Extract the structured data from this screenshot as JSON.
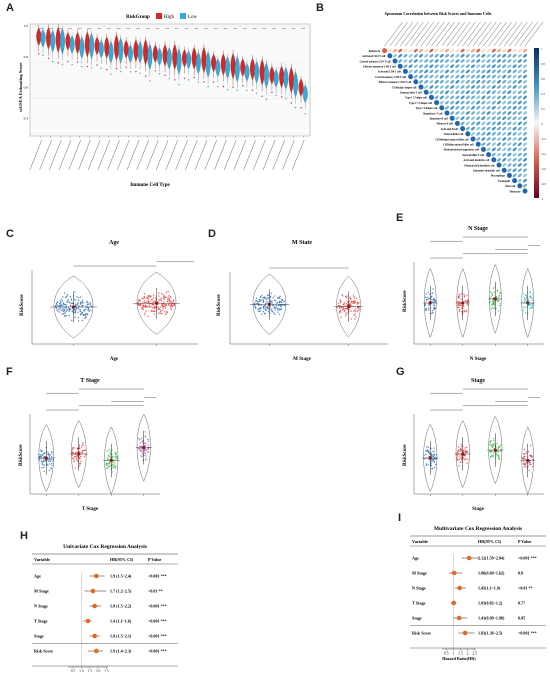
{
  "panels": {
    "A": {
      "letter": "A"
    },
    "B": {
      "letter": "B"
    },
    "C": {
      "letter": "C"
    },
    "D": {
      "letter": "D"
    },
    "E": {
      "letter": "E"
    },
    "F": {
      "letter": "F"
    },
    "G": {
      "letter": "G"
    },
    "H": {
      "letter": "H"
    },
    "I": {
      "letter": "I"
    }
  },
  "chart_data": [
    {
      "panel": "A",
      "type": "violin",
      "legend_title": "RiskGroup",
      "legend": [
        "High",
        "Low"
      ],
      "colors": {
        "High": "#d62728",
        "Low": "#36a9d6"
      },
      "ylabel": "ssGSEA Estimating Score",
      "xlabel": "Immune Cell Type",
      "n_cell_types": 28,
      "high_medians": [
        0.93,
        0.92,
        0.91,
        0.9,
        0.89,
        0.88,
        0.87,
        0.86,
        0.86,
        0.85,
        0.84,
        0.83,
        0.82,
        0.81,
        0.8,
        0.79,
        0.79,
        0.78,
        0.76,
        0.75,
        0.74,
        0.73,
        0.72,
        0.7,
        0.68,
        0.67,
        0.65,
        0.6
      ],
      "low_medians": [
        0.92,
        0.9,
        0.9,
        0.88,
        0.86,
        0.87,
        0.85,
        0.83,
        0.84,
        0.82,
        0.83,
        0.8,
        0.8,
        0.79,
        0.77,
        0.78,
        0.76,
        0.75,
        0.73,
        0.73,
        0.72,
        0.7,
        0.7,
        0.68,
        0.66,
        0.66,
        0.62,
        0.56
      ]
    },
    {
      "panel": "B",
      "type": "heatmap",
      "title": "Spearman Correlation between Risk Scores and Immune Cells",
      "rows": [
        "RiskScore",
        "Activated CD4 T cell",
        "Central memory CD4 T cell",
        "Effector memeory CD4 T cell",
        "Activated CD8 T cell",
        "Central memory CD8 T cell",
        "Effector memeory CD8 T cell",
        "T follicular helper cell",
        "Gamma delta T cell",
        "Type 1 T helper cell",
        "Type 17 T helper cell",
        "Type 2 T helper cell",
        "Regulatory T cell",
        "Immature B cell",
        "Memory B cell",
        "Activated B cell",
        "Natural killer cell",
        "CD56bright natural killer cell",
        "CD56dim natural killer cell",
        "Myeloid derived suppressor cell",
        "Natural killer T cell",
        "Activated dendritic cell",
        "Plasmacytoid dendritic cell",
        "Immature dendritic cell",
        "Macrophage",
        "Eosinophil",
        "Mast cell",
        "Monocyte"
      ],
      "colorbar": [
        "1",
        "0.8",
        "0.6",
        "0.4",
        "0.2",
        "0",
        "-0.2",
        "-0.4",
        "-0.6",
        "-0.8",
        "-1"
      ]
    },
    {
      "panel": "C",
      "type": "violin",
      "title": "Age",
      "xlabel": "Age",
      "ylabel": "RiskScore",
      "groups": [
        {
          "color": "#2f6db3",
          "median": 0.5
        },
        {
          "color": "#e23b3b",
          "median": 0.55
        }
      ]
    },
    {
      "panel": "D",
      "type": "violin",
      "title": "M State",
      "xlabel": "M Stage",
      "ylabel": "RiskScore",
      "groups": [
        {
          "color": "#2f6db3",
          "median": 0.55
        },
        {
          "color": "#e23b3b",
          "median": 0.52
        }
      ]
    },
    {
      "panel": "E",
      "type": "violin",
      "title": "N Stage",
      "xlabel": "N Stage",
      "ylabel": "RiskScore",
      "groups": [
        {
          "color": "#2f6db3",
          "median": 0.5
        },
        {
          "color": "#e23b3b",
          "median": 0.5
        },
        {
          "color": "#3fae49",
          "median": 0.55
        },
        {
          "color": "#36b7c9",
          "median": 0.5
        }
      ]
    },
    {
      "panel": "F",
      "type": "violin",
      "title": "T Stage",
      "xlabel": "T Stage",
      "ylabel": "RiskScore",
      "groups": [
        {
          "color": "#2f6db3",
          "median": 0.45
        },
        {
          "color": "#e23b3b",
          "median": 0.5
        },
        {
          "color": "#3fae49",
          "median": 0.42
        },
        {
          "color": "#a05aa8",
          "median": 0.58
        }
      ]
    },
    {
      "panel": "G",
      "type": "violin",
      "title": "Stage",
      "xlabel": "Stage",
      "ylabel": "RiskScore",
      "groups": [
        {
          "color": "#2f6db3",
          "median": 0.45
        },
        {
          "color": "#e23b3b",
          "median": 0.5
        },
        {
          "color": "#3fae49",
          "median": 0.55
        },
        {
          "color": "#c94a6b",
          "median": 0.42
        }
      ]
    },
    {
      "panel": "H",
      "type": "forest",
      "title": "Univariate Cox Regression Analysis",
      "headers": [
        "Variable",
        "HR(95% CI)",
        "P Value"
      ],
      "xlabel": "Hazard Ratio(HR)",
      "xticks": [
        "0.5",
        "1.0",
        "1.5",
        "2.0",
        "2.5"
      ],
      "xlim": [
        0.2,
        2.6
      ],
      "rows": [
        {
          "variable": "Age",
          "hr_text": "1.9 (1.5~2.4)",
          "p": "<0.001 ***",
          "hr": 1.9,
          "lo": 1.5,
          "hi": 2.4
        },
        {
          "variable": "M Stage",
          "hr_text": "1.7 (1.2~2.5)",
          "p": "<0.01 **",
          "hr": 1.7,
          "lo": 1.2,
          "hi": 2.5
        },
        {
          "variable": "N Stage",
          "hr_text": "1.8 (1.5~2.2)",
          "p": "<0.001 ***",
          "hr": 1.8,
          "lo": 1.5,
          "hi": 2.2
        },
        {
          "variable": "T Stage",
          "hr_text": "1.4 (1.1~1.6)",
          "p": "<0.001 ***",
          "hr": 1.4,
          "lo": 1.1,
          "hi": 1.6
        },
        {
          "variable": "Stage",
          "hr_text": "1.8 (1.5~2.1)",
          "p": "<0.001 ***",
          "hr": 1.8,
          "lo": 1.5,
          "hi": 2.1
        },
        {
          "variable": "Risk Score",
          "hr_text": "1.9 (1.4~2.3)",
          "p": "<0.001 ***",
          "hr": 1.9,
          "lo": 1.4,
          "hi": 2.3
        }
      ]
    },
    {
      "panel": "I",
      "type": "forest",
      "title": "Multivariate Cox Regression Analysis",
      "headers": [
        "Variable",
        "HR(95% CI)",
        "P Value"
      ],
      "xlabel": "Hazard Ratio(HR)",
      "xticks": [
        "0.5",
        "1",
        "1.5",
        "2",
        "2.5"
      ],
      "xlim": [
        0.2,
        2.6
      ],
      "rows": [
        {
          "variable": "Age",
          "hr_text": "2.12(1.59~2.84)",
          "p": "<0.001 ***",
          "hr": 2.12,
          "lo": 1.59,
          "hi": 2.84
        },
        {
          "variable": "M Stage",
          "hr_text": "1.06(0.69~1.62)",
          "p": "0.8",
          "hr": 1.06,
          "lo": 0.69,
          "hi": 1.62
        },
        {
          "variable": "N Stage",
          "hr_text": "1.45(1.1~1.9)",
          "p": "<0.01 **",
          "hr": 1.45,
          "lo": 1.1,
          "hi": 1.9
        },
        {
          "variable": "T Stage",
          "hr_text": "1.03(0.82~1.2)",
          "p": "0.77",
          "hr": 1.03,
          "lo": 0.82,
          "hi": 1.2
        },
        {
          "variable": "Stage",
          "hr_text": "1.41(0.99~1.98)",
          "p": "0.05",
          "hr": 1.41,
          "lo": 0.99,
          "hi": 1.98
        },
        {
          "variable": "Risk Score",
          "hr_text": "1.83(1.36~2.5)",
          "p": "<0.001 ***",
          "hr": 1.83,
          "lo": 1.36,
          "hi": 2.5
        }
      ]
    }
  ]
}
